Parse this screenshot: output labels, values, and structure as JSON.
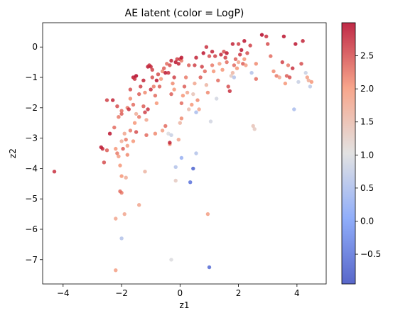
{
  "chart_data": {
    "type": "scatter",
    "title": "AE latent (color = LogP)",
    "xlabel": "z1",
    "ylabel": "z2",
    "xlim": [
      -4.7,
      5.0
    ],
    "ylim": [
      -7.8,
      0.8
    ],
    "xticks": [
      -4,
      -2,
      0,
      2,
      4
    ],
    "yticks": [
      0,
      -1,
      -2,
      -3,
      -4,
      -5,
      -6,
      -7
    ],
    "colorbar": {
      "label": "",
      "colormap": "coolwarm",
      "range": [
        -0.95,
        3.0
      ],
      "ticks": [
        2.5,
        2.0,
        1.5,
        1.0,
        0.5,
        0.0,
        -0.5
      ],
      "tick_labels": [
        "2.5",
        "2.0",
        "1.5",
        "1.0",
        "0.5",
        "0.0",
        "−0.5"
      ]
    },
    "points": [
      [
        -4.3,
        -4.1,
        2.7
      ],
      [
        -2.7,
        -3.3,
        2.9
      ],
      [
        -2.65,
        -3.35,
        2.8
      ],
      [
        -2.6,
        -3.8,
        2.5
      ],
      [
        -2.5,
        -3.4,
        2.4
      ],
      [
        -2.5,
        -1.75,
        2.6
      ],
      [
        -2.3,
        -1.75,
        2.8
      ],
      [
        -2.2,
        -7.35,
        1.9
      ],
      [
        -2.2,
        -5.65,
        1.8
      ],
      [
        -2.0,
        -6.3,
        0.6
      ],
      [
        -2.0,
        -4.8,
        2.2
      ],
      [
        -2.05,
        -4.75,
        2.3
      ],
      [
        -2.0,
        -4.25,
        2.0
      ],
      [
        -1.85,
        -4.3,
        1.7
      ],
      [
        -1.9,
        -5.5,
        1.8
      ],
      [
        -2.2,
        -3.35,
        2.0
      ],
      [
        -2.15,
        -3.5,
        2.2
      ],
      [
        -2.1,
        -3.6,
        1.9
      ],
      [
        -2.05,
        -3.9,
        2.0
      ],
      [
        -1.95,
        -3.35,
        2.4
      ],
      [
        -2.25,
        -2.65,
        2.3
      ],
      [
        -2.1,
        -2.3,
        2.2
      ],
      [
        -2.0,
        -2.2,
        2.4
      ],
      [
        -1.9,
        -2.85,
        1.8
      ],
      [
        -1.85,
        -3.05,
        2.2
      ],
      [
        -1.8,
        -3.25,
        1.9
      ],
      [
        -2.4,
        -2.85,
        2.9
      ],
      [
        -2.15,
        -1.95,
        2.5
      ],
      [
        -2.0,
        -2.1,
        2.3
      ],
      [
        -1.8,
        -2.0,
        2.2
      ],
      [
        -1.7,
        -1.7,
        2.1
      ],
      [
        -1.7,
        -1.4,
        2.5
      ],
      [
        -1.75,
        -2.05,
        2.7
      ],
      [
        -1.6,
        -1.9,
        2.3
      ],
      [
        -1.55,
        -2.5,
        2.0
      ],
      [
        -1.5,
        -2.2,
        1.7
      ],
      [
        -1.7,
        -2.75,
        2.2
      ],
      [
        -1.5,
        -2.8,
        2.5
      ],
      [
        -1.6,
        -3.1,
        2.0
      ],
      [
        -1.4,
        -2.3,
        2.2
      ],
      [
        -1.6,
        -1.0,
        2.9
      ],
      [
        -1.55,
        -1.05,
        2.7
      ],
      [
        -1.5,
        -0.95,
        3.0
      ],
      [
        -1.4,
        -1.55,
        2.4
      ],
      [
        -1.35,
        -1.3,
        2.6
      ],
      [
        -1.25,
        -1.1,
        2.8
      ],
      [
        -1.2,
        -1.5,
        2.1
      ],
      [
        -1.25,
        -1.95,
        2.4
      ],
      [
        -1.2,
        -2.15,
        2.6
      ],
      [
        -1.1,
        -2.05,
        2.7
      ],
      [
        -1.15,
        -2.4,
        1.8
      ],
      [
        -1.15,
        -2.9,
        2.3
      ],
      [
        -1.2,
        -4.1,
        1.6
      ],
      [
        -1.4,
        -5.2,
        1.8
      ],
      [
        -1.1,
        -0.65,
        2.9
      ],
      [
        -1.05,
        -0.6,
        2.7
      ],
      [
        -1.0,
        -0.65,
        2.8
      ],
      [
        -0.95,
        -0.75,
        2.6
      ],
      [
        -0.95,
        -1.0,
        2.5
      ],
      [
        -0.9,
        -1.3,
        2.2
      ],
      [
        -0.85,
        -1.6,
        2.3
      ],
      [
        -0.8,
        -1.85,
        2.0
      ],
      [
        -0.8,
        -1.1,
        2.9
      ],
      [
        -0.75,
        -0.9,
        2.5
      ],
      [
        -0.7,
        -1.3,
        2.4
      ],
      [
        -0.65,
        -1.05,
        2.0
      ],
      [
        -0.6,
        -0.8,
        2.1
      ],
      [
        -0.55,
        -0.7,
        2.4
      ],
      [
        -0.5,
        -0.85,
        2.9
      ],
      [
        -0.45,
        -0.55,
        2.3
      ],
      [
        -0.4,
        -0.85,
        2.7
      ],
      [
        -0.35,
        -0.6,
        2.5
      ],
      [
        -0.3,
        -0.45,
        2.8
      ],
      [
        -0.25,
        -1.2,
        2.1
      ],
      [
        -0.3,
        -1.55,
        2.4
      ],
      [
        -0.2,
        -1.4,
        2.0
      ],
      [
        -0.15,
        -0.5,
        2.9
      ],
      [
        -0.1,
        -0.4,
        2.6
      ],
      [
        -0.05,
        -0.55,
        2.8
      ],
      [
        0.0,
        -0.4,
        2.7
      ],
      [
        0.05,
        -0.45,
        2.2
      ],
      [
        0.05,
        -0.35,
        2.9
      ],
      [
        -0.85,
        -2.85,
        2.1
      ],
      [
        -0.6,
        -2.75,
        1.9
      ],
      [
        -0.5,
        -2.6,
        2.3
      ],
      [
        -0.4,
        -2.85,
        1.0
      ],
      [
        -0.3,
        -2.9,
        0.8
      ],
      [
        -0.35,
        -3.2,
        1.9
      ],
      [
        -0.35,
        -3.15,
        2.8
      ],
      [
        -0.3,
        -7.0,
        1.0
      ],
      [
        -0.15,
        -3.95,
        0.6
      ],
      [
        -0.15,
        -4.4,
        1.3
      ],
      [
        0.05,
        -3.65,
        0.3
      ],
      [
        -0.05,
        -3.05,
        1.8
      ],
      [
        0.0,
        -2.5,
        1.6
      ],
      [
        0.05,
        -2.35,
        2.1
      ],
      [
        0.05,
        -1.85,
        2.3
      ],
      [
        0.1,
        -1.6,
        2.0
      ],
      [
        0.15,
        -1.3,
        2.4
      ],
      [
        0.2,
        -1.0,
        2.2
      ],
      [
        0.25,
        -1.5,
        1.8
      ],
      [
        0.3,
        -2.05,
        1.5
      ],
      [
        0.35,
        -4.45,
        -0.5
      ],
      [
        0.45,
        -4.0,
        -0.7
      ],
      [
        0.55,
        -3.5,
        0.6
      ],
      [
        0.4,
        -1.9,
        2.0
      ],
      [
        0.45,
        -1.55,
        1.4
      ],
      [
        0.5,
        -1.2,
        1.8
      ],
      [
        0.5,
        -0.6,
        2.6
      ],
      [
        0.55,
        -0.35,
        2.8
      ],
      [
        0.55,
        -2.15,
        0.5
      ],
      [
        0.6,
        -1.75,
        2.1
      ],
      [
        0.65,
        -2.05,
        1.8
      ],
      [
        0.7,
        -1.0,
        2.4
      ],
      [
        0.75,
        -0.65,
        2.6
      ],
      [
        0.8,
        -0.2,
        2.9
      ],
      [
        0.85,
        -0.8,
        2.3
      ],
      [
        0.9,
        -1.25,
        1.6
      ],
      [
        0.95,
        -1.5,
        2.1
      ],
      [
        0.95,
        -5.5,
        1.9
      ],
      [
        1.0,
        -7.25,
        -0.6
      ],
      [
        1.05,
        -2.45,
        0.9
      ],
      [
        1.1,
        -0.6,
        2.2
      ],
      [
        1.15,
        -0.8,
        2.0
      ],
      [
        1.2,
        -0.3,
        2.6
      ],
      [
        1.25,
        -1.7,
        0.9
      ],
      [
        1.3,
        -1.1,
        2.3
      ],
      [
        1.35,
        -0.55,
        1.9
      ],
      [
        1.4,
        -0.25,
        2.8
      ],
      [
        1.45,
        -0.75,
        2.0
      ],
      [
        1.5,
        -0.15,
        2.5
      ],
      [
        1.55,
        -0.35,
        2.6
      ],
      [
        1.6,
        -0.2,
        2.9
      ],
      [
        1.65,
        -1.3,
        2.5
      ],
      [
        1.7,
        -1.45,
        2.7
      ],
      [
        1.75,
        -0.95,
        1.3
      ],
      [
        1.8,
        -0.85,
        1.6
      ],
      [
        1.85,
        -0.6,
        2.3
      ],
      [
        1.85,
        -1.0,
        0.6
      ],
      [
        1.9,
        -0.4,
        2.4
      ],
      [
        1.95,
        -0.7,
        2.0
      ],
      [
        2.0,
        -0.5,
        1.8
      ],
      [
        2.05,
        -0.25,
        2.7
      ],
      [
        2.1,
        -0.1,
        2.9
      ],
      [
        2.15,
        -0.55,
        2.4
      ],
      [
        2.2,
        -0.4,
        2.0
      ],
      [
        2.25,
        -0.6,
        1.9
      ],
      [
        2.3,
        -0.2,
        2.5
      ],
      [
        2.4,
        0.05,
        2.6
      ],
      [
        2.45,
        -0.85,
        0.6
      ],
      [
        2.5,
        -2.6,
        1.4
      ],
      [
        2.55,
        -2.7,
        1.3
      ],
      [
        2.6,
        -1.05,
        2.3
      ],
      [
        2.8,
        0.4,
        3.0
      ],
      [
        2.95,
        0.35,
        2.7
      ],
      [
        3.0,
        0.1,
        2.5
      ],
      [
        3.1,
        -0.3,
        2.3
      ],
      [
        3.2,
        -0.8,
        2.1
      ],
      [
        3.3,
        -0.95,
        2.2
      ],
      [
        3.4,
        -1.0,
        1.8
      ],
      [
        3.5,
        -0.5,
        2.6
      ],
      [
        3.55,
        0.35,
        2.9
      ],
      [
        3.6,
        -1.2,
        2.0
      ],
      [
        3.65,
        -0.95,
        2.4
      ],
      [
        3.7,
        -0.6,
        2.2
      ],
      [
        3.75,
        -1.0,
        2.5
      ],
      [
        3.85,
        -0.7,
        2.7
      ],
      [
        3.9,
        -2.05,
        0.5
      ],
      [
        3.95,
        0.1,
        2.9
      ],
      [
        4.05,
        -1.15,
        0.8
      ],
      [
        4.15,
        -0.55,
        2.5
      ],
      [
        4.2,
        0.2,
        2.8
      ],
      [
        4.3,
        -0.85,
        0.8
      ],
      [
        4.35,
        -1.0,
        1.9
      ],
      [
        4.4,
        -1.1,
        1.7
      ],
      [
        4.45,
        -1.3,
        0.7
      ],
      [
        4.5,
        -1.15,
        2.0
      ],
      [
        2.0,
        0.1,
        2.6
      ],
      [
        1.8,
        0.1,
        2.8
      ],
      [
        1.6,
        -0.5,
        2.3
      ],
      [
        1.0,
        -0.3,
        2.5
      ],
      [
        0.9,
        0.0,
        2.7
      ],
      [
        1.1,
        -0.15,
        2.8
      ],
      [
        0.3,
        -0.6,
        2.4
      ],
      [
        -0.2,
        -1.0,
        2.6
      ],
      [
        -1.8,
        -3.55,
        2.1
      ],
      [
        -2.0,
        -3.1,
        1.7
      ],
      [
        -1.0,
        -1.4,
        2.7
      ],
      [
        2.2,
        0.2,
        2.9
      ],
      [
        2.6,
        -0.55,
        2.1
      ]
    ]
  }
}
